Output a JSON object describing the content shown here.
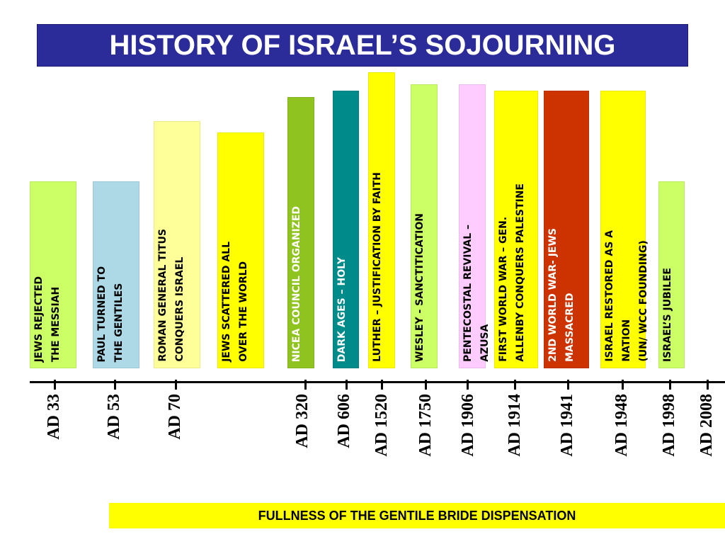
{
  "title": "HISTORY OF ISRAEL’S SOJOURNING",
  "footer": "FULLNESS OF THE GENTILE BRIDE DISPENSATION",
  "events": [
    {
      "id": "jews-rejected",
      "label": "JEWS REJECTED\nTHE MESSIAH",
      "year": "AD 33",
      "color": "#ccff66",
      "text_color": "#000000"
    },
    {
      "id": "paul-gentiles",
      "label": "PAUL TURNED TO\nTHE GENTILES",
      "year": "AD 53",
      "color": "#add8e6",
      "text_color": "#000000"
    },
    {
      "id": "roman-titus",
      "label": "ROMAN GENERAL TITUS\nCONQUERS ISRAEL",
      "year": "AD 70",
      "color": "#ffff99",
      "text_color": "#000000"
    },
    {
      "id": "jews-scattered",
      "label": "JEWS SCATTERED ALL\nOVER THE WORLD",
      "year": "",
      "color": "#ffff00",
      "text_color": "#000000"
    },
    {
      "id": "nicea",
      "label": "NICEA COUNCIL ORGANIZED",
      "year": "AD 320",
      "color": "#8fc31f",
      "text_color": "#ffffff"
    },
    {
      "id": "dark-ages",
      "label": "DARK AGES – HOLY",
      "year": "AD 606",
      "color": "#008b8b",
      "text_color": "#ffffff"
    },
    {
      "id": "luther",
      "label": "LUTHER – JUSTIFICATION BY FAITH",
      "year": "AD 1520",
      "color": "#ffff00",
      "text_color": "#000000"
    },
    {
      "id": "wesley",
      "label": "WESLEY - SANCTITICATION",
      "year": "AD 1750",
      "color": "#ccff66",
      "text_color": "#000000"
    },
    {
      "id": "pentecostal",
      "label": "PENTECOSTAL REVIVAL –\nAZUSA",
      "year": "AD 1906",
      "color": "#ffccff",
      "text_color": "#000000"
    },
    {
      "id": "ww1",
      "label": "FIRST WORLD WAR – GEN.\nALLENBY CONQUERS PALESTINE",
      "year": "AD 1914",
      "color": "#ffff00",
      "text_color": "#000000"
    },
    {
      "id": "ww2",
      "label": "2ND WORLD WAR- JEWS\nMASSACRED",
      "year": "AD 1941",
      "color": "#cc3300",
      "text_color": "#ffffff"
    },
    {
      "id": "israel-restored",
      "label": "ISRAEL RESTORED AS A\nNATION\n(UN/ WCC FOUNDING)",
      "year": "AD 1948",
      "color": "#ffff00",
      "text_color": "#000000"
    },
    {
      "id": "jubilee",
      "label": "ISRAEL’S JUBILEE",
      "year": "AD 1998",
      "color": "#ccff66",
      "text_color": "#000000"
    },
    {
      "id": "ad-2008",
      "label": "",
      "year": "AD 2008",
      "color": "",
      "text_color": ""
    }
  ]
}
